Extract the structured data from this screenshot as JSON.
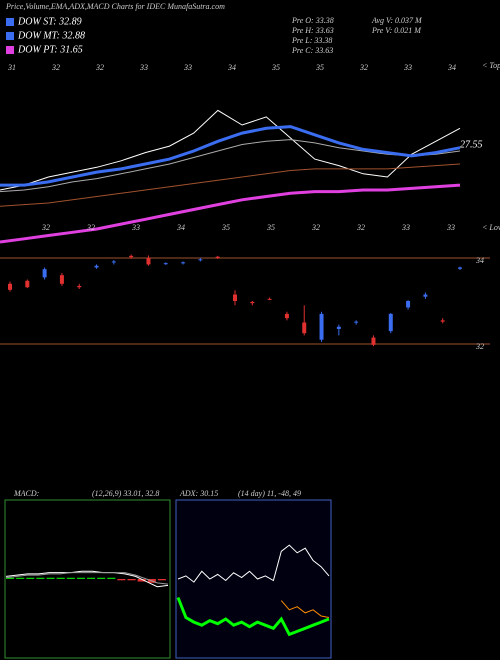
{
  "header": {
    "title": "Price,Volume,EMA,ADX,MACD Charts for IDEC MunafaSutra.com",
    "legend": [
      {
        "text": "DOW ST: 32.89",
        "color": "#3a6df0"
      },
      {
        "text": "DOW MT: 32.88",
        "color": "#3a6df0"
      },
      {
        "text": "DOW PT: 31.65",
        "color": "#e040e0"
      }
    ],
    "info": [
      "Pre  O: 33.38",
      "Pre  H: 33.63",
      "Pre  L: 33.38",
      "Pre  C: 33.63",
      "Avg V: 0.037 M",
      "Pre  V: 0.021 M"
    ]
  },
  "chart_data": [
    {
      "type": "line",
      "ylim": [
        24,
        36
      ],
      "top_labels": [
        "31",
        "32",
        "32",
        "33",
        "33",
        "34",
        "35",
        "35",
        "32",
        "33",
        "34"
      ],
      "top_caption": "< Tops",
      "low_labels": [
        "32",
        "32",
        "33",
        "34",
        "35",
        "35",
        "32",
        "32",
        "33",
        "33"
      ],
      "low_caption": "< Lows",
      "annotation": "27.55",
      "series": [
        {
          "color": "#ffffff",
          "width": 1,
          "values": [
            28.0,
            28.3,
            28.8,
            29.1,
            29.4,
            29.8,
            30.3,
            30.7,
            31.5,
            32.9,
            32.0,
            32.5,
            31.2,
            29.9,
            29.5,
            29.0,
            28.8,
            30.2,
            31.0,
            31.8
          ]
        },
        {
          "color": "#aaaaaa",
          "width": 1,
          "values": [
            27.9,
            28.0,
            28.2,
            28.5,
            28.7,
            29.0,
            29.3,
            29.6,
            30.0,
            30.4,
            30.8,
            31.0,
            31.1,
            30.9,
            30.6,
            30.4,
            30.2,
            30.1,
            30.2,
            30.4
          ]
        },
        {
          "color": "#3a6df0",
          "width": 3,
          "values": [
            28.3,
            28.3,
            28.5,
            28.8,
            29.1,
            29.3,
            29.6,
            29.9,
            30.4,
            31.0,
            31.5,
            31.8,
            31.9,
            31.4,
            30.9,
            30.5,
            30.3,
            30.1,
            30.3,
            30.6
          ]
        },
        {
          "color": "#a0522d",
          "width": 1,
          "values": [
            27.0,
            27.1,
            27.2,
            27.4,
            27.6,
            27.8,
            28.0,
            28.2,
            28.4,
            28.6,
            28.8,
            29.0,
            29.2,
            29.3,
            29.3,
            29.3,
            29.3,
            29.4,
            29.5,
            29.6
          ]
        },
        {
          "color": "#e040e0",
          "width": 3,
          "values": [
            24.8,
            25.0,
            25.2,
            25.4,
            25.6,
            25.9,
            26.2,
            26.5,
            26.8,
            27.1,
            27.4,
            27.6,
            27.8,
            27.9,
            27.9,
            28.0,
            28.0,
            28.1,
            28.2,
            28.3
          ]
        }
      ]
    },
    {
      "type": "candlestick",
      "ylim": [
        31.93,
        34.07
      ],
      "yticks": [
        32,
        34
      ],
      "up_color": "#3a6df0",
      "down_color": "#e03030",
      "open": [
        33.4,
        33.47,
        33.55,
        33.6,
        33.35,
        33.78,
        33.9,
        34.05,
        34.0,
        33.86,
        33.88,
        33.95,
        34.03,
        33.15,
        32.98,
        33.05,
        32.7,
        32.5,
        32.1,
        32.35,
        32.5,
        32.15,
        32.3,
        32.85,
        33.1,
        32.55,
        33.75
      ],
      "high": [
        33.45,
        33.5,
        33.78,
        33.65,
        33.4,
        33.85,
        33.95,
        34.08,
        34.06,
        33.9,
        33.92,
        34.0,
        34.05,
        33.25,
        33.0,
        33.08,
        32.75,
        32.9,
        32.75,
        32.45,
        32.55,
        32.2,
        32.72,
        33.02,
        33.2,
        32.6,
        33.8
      ],
      "low": [
        33.22,
        33.3,
        33.5,
        33.35,
        33.28,
        33.75,
        33.85,
        33.98,
        33.82,
        33.84,
        33.85,
        33.92,
        33.98,
        32.9,
        32.9,
        33.02,
        32.55,
        32.2,
        32.05,
        32.2,
        32.45,
        31.95,
        32.25,
        32.8,
        33.05,
        32.48,
        33.72
      ],
      "close": [
        33.26,
        33.32,
        33.74,
        33.4,
        33.32,
        33.82,
        33.92,
        34.02,
        33.85,
        33.88,
        33.9,
        33.97,
        34.0,
        33.0,
        32.95,
        33.04,
        32.6,
        32.25,
        32.7,
        32.4,
        32.52,
        31.98,
        32.7,
        33.0,
        33.15,
        32.52,
        33.78
      ]
    },
    {
      "type": "macd",
      "title": "MACD:",
      "subtitle": "(12,26,9) 33.01, 32.8",
      "ylim": [
        -0.6,
        0.6
      ],
      "series": [
        {
          "color": "#ffffff",
          "width": 1,
          "values": [
            0.02,
            0.03,
            0.04,
            0.04,
            0.05,
            0.05,
            0.05,
            0.06,
            0.06,
            0.05,
            0.05,
            0.04,
            0.02,
            -0.02,
            -0.06,
            -0.05
          ]
        },
        {
          "color": "#999999",
          "width": 1,
          "values": [
            0.01,
            0.02,
            0.03,
            0.03,
            0.04,
            0.04,
            0.05,
            0.05,
            0.05,
            0.05,
            0.05,
            0.05,
            0.03,
            0.0,
            -0.03,
            -0.04
          ]
        }
      ],
      "histogram": [
        0.01,
        0.01,
        0.01,
        0.01,
        0.01,
        0.01,
        0.01,
        0.01,
        0.01,
        0.01,
        0.01,
        -0.01,
        -0.01,
        -0.02,
        -0.03,
        -0.01
      ]
    },
    {
      "type": "line",
      "title": "ADX: 30.15",
      "subtitle": "(14 day) 11, -48, 49",
      "ylim": [
        0,
        100
      ],
      "series": [
        {
          "color": "#ffffff",
          "width": 1,
          "values": [
            50,
            52,
            48,
            55,
            50,
            53,
            49,
            54,
            51,
            55,
            50,
            52,
            49,
            68,
            72,
            67,
            70,
            62,
            58,
            52
          ]
        },
        {
          "color": "#ff8c00",
          "width": 1,
          "values": [
            null,
            null,
            null,
            null,
            null,
            null,
            null,
            null,
            null,
            null,
            null,
            null,
            null,
            36,
            30,
            32,
            28,
            30,
            26,
            25
          ]
        },
        {
          "color": "#00ff00",
          "width": 3,
          "values": [
            38,
            25,
            22,
            20,
            23,
            21,
            24,
            20,
            22,
            19,
            22,
            20,
            18,
            24,
            14,
            16,
            18,
            20,
            22,
            24
          ]
        }
      ]
    }
  ]
}
